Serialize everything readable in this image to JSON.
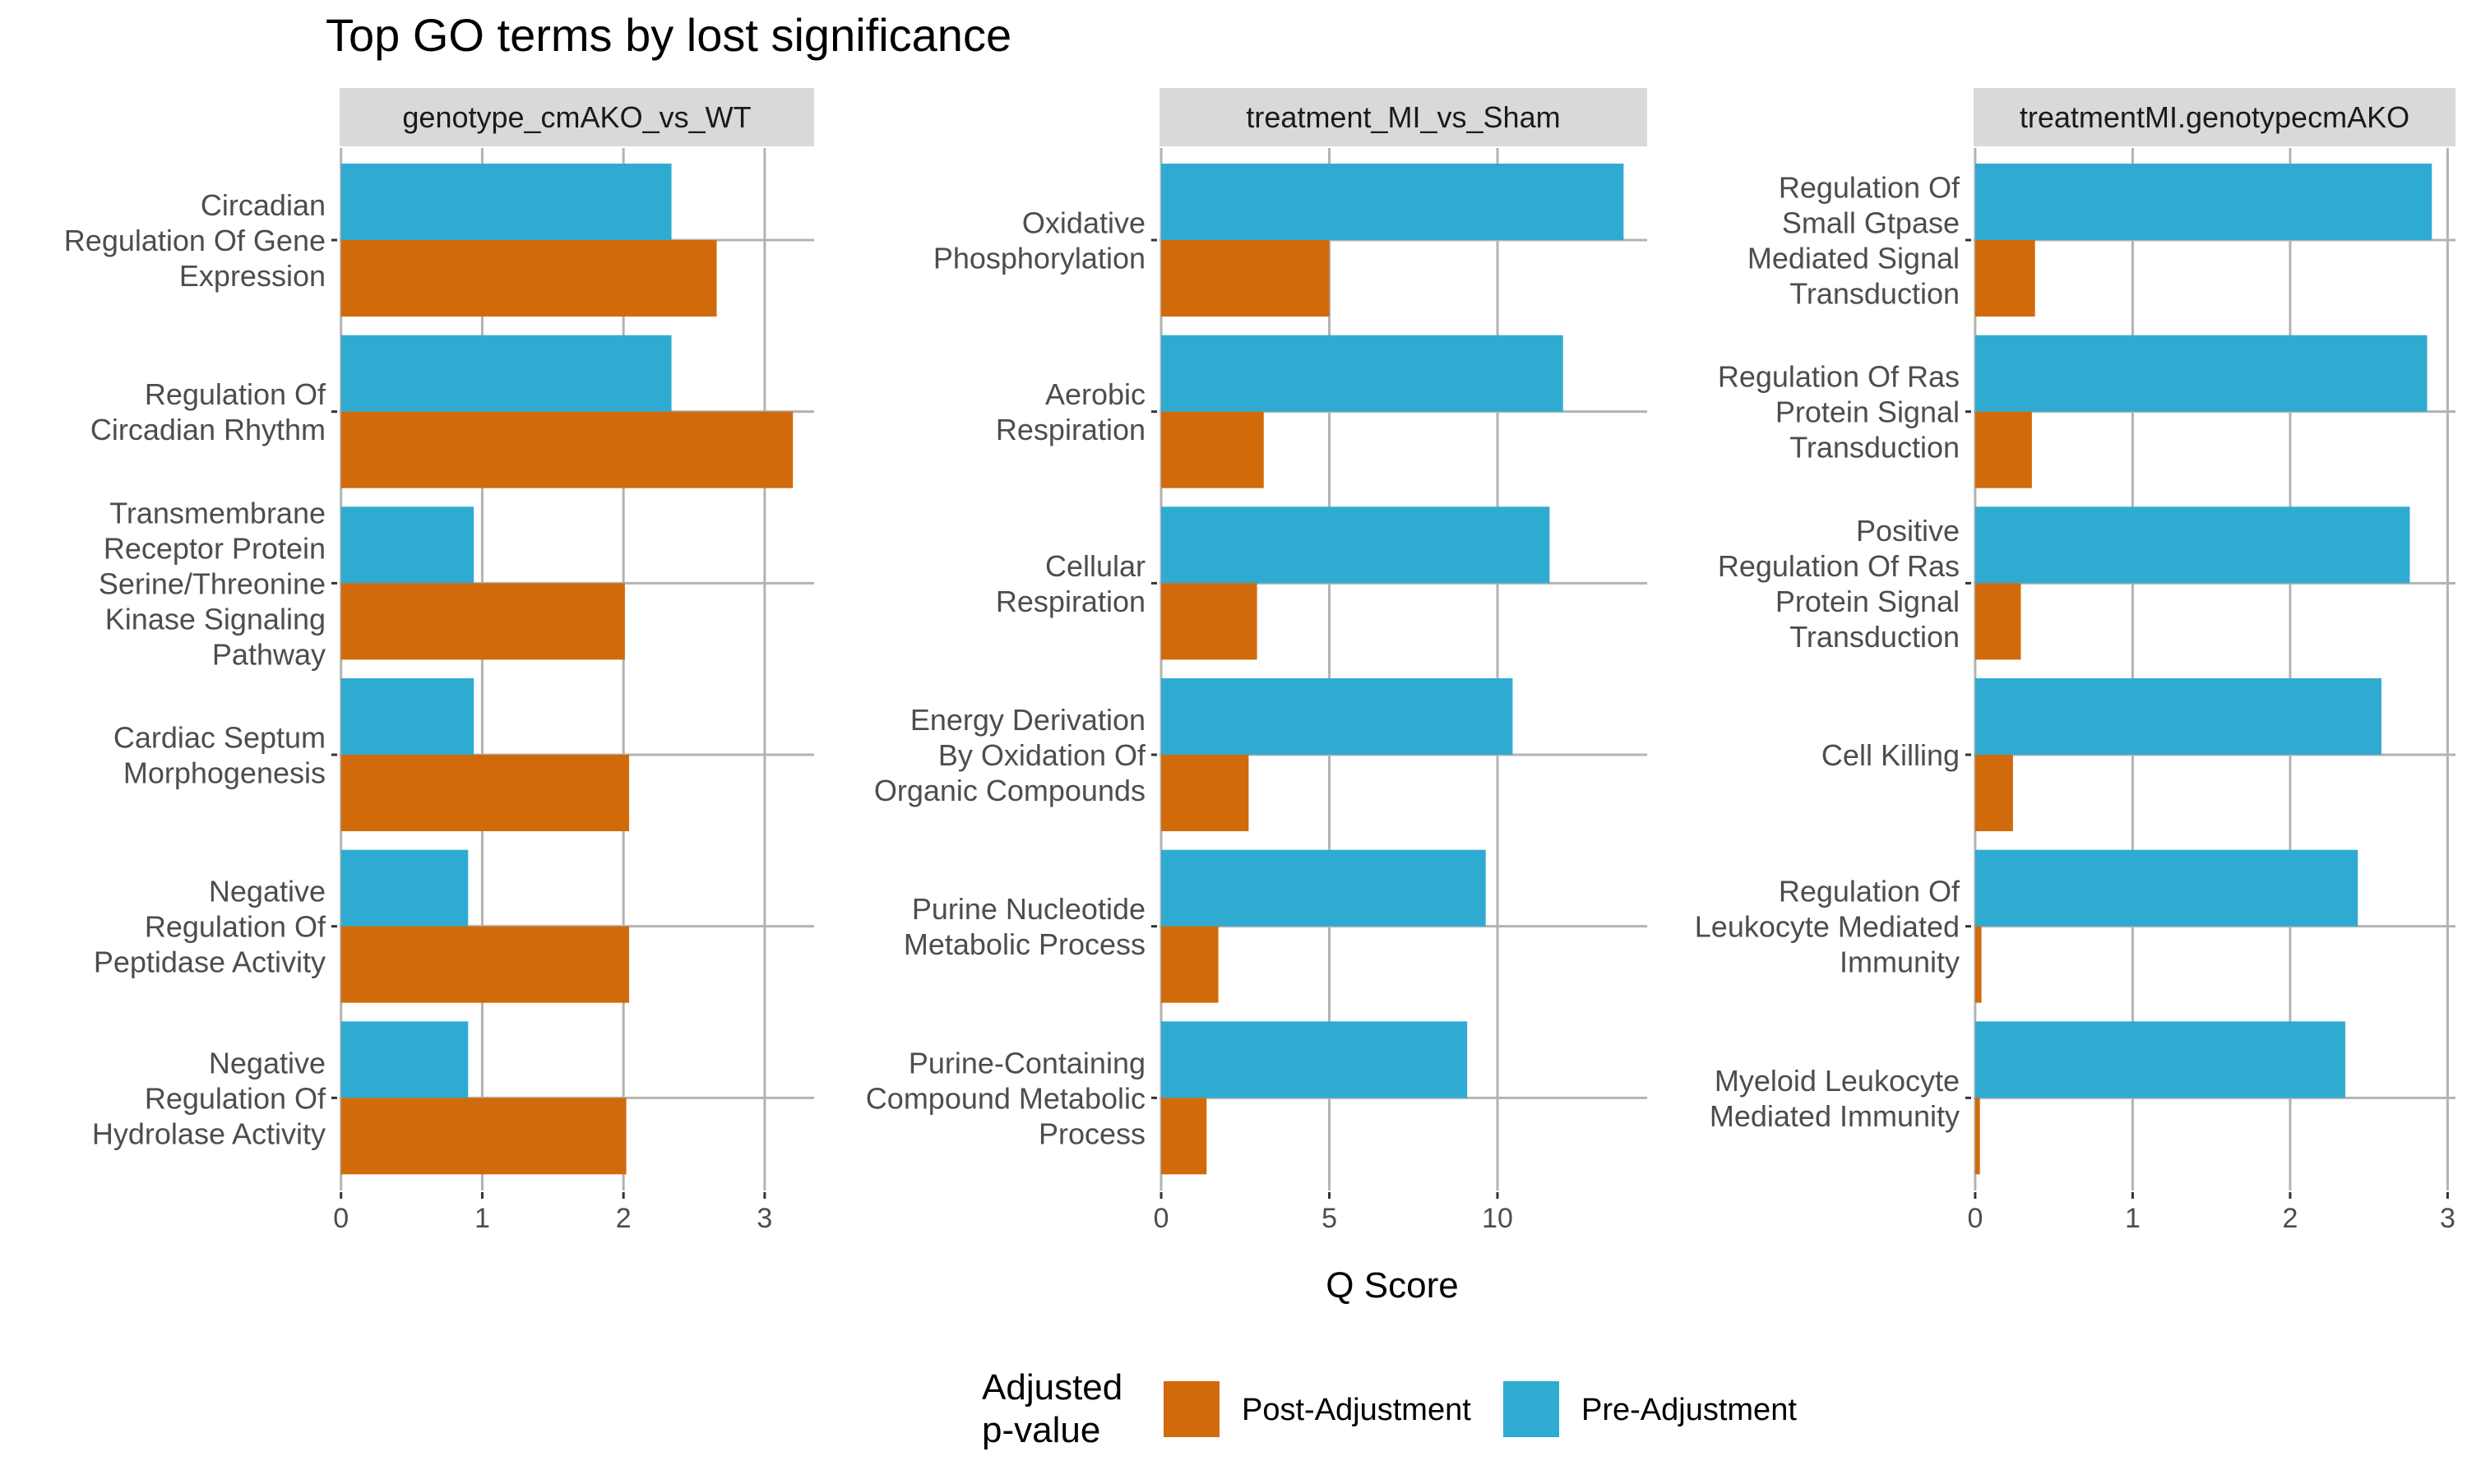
{
  "chart_data": {
    "type": "bar",
    "orientation": "horizontal",
    "title": "Top GO terms by lost significance",
    "xlabel": "Q Score",
    "ylabel": "",
    "grid": true,
    "legend": {
      "title_lines": [
        "Adjusted",
        "p-value"
      ],
      "placement": "bottom",
      "entries": [
        {
          "label": "Post-Adjustment",
          "color": "#D16A0A"
        },
        {
          "label": "Pre-Adjustment",
          "color": "#2FABD1"
        }
      ]
    },
    "colors": {
      "post": "#D16A0A",
      "pre": "#2FABD1",
      "strip": "#D9D9D9",
      "grid": "#B3B3B3"
    },
    "panels": [
      {
        "strip": "genotype_cmAKO_vs_WT",
        "xlim": [
          -0.01,
          3.35
        ],
        "xticks": [
          0,
          1,
          2,
          3
        ],
        "categories": [
          {
            "lines": [
              "Circadian",
              "Regulation Of Gene",
              "Expression"
            ],
            "pre": 2.34,
            "post": 2.66
          },
          {
            "lines": [
              "Regulation Of",
              "Circadian Rhythm"
            ],
            "pre": 2.34,
            "post": 3.2
          },
          {
            "lines": [
              "Transmembrane",
              "Receptor Protein",
              "Serine/Threonine",
              "Kinase Signaling",
              "Pathway"
            ],
            "pre": 0.94,
            "post": 2.01
          },
          {
            "lines": [
              "Cardiac Septum",
              "Morphogenesis"
            ],
            "pre": 0.94,
            "post": 2.04
          },
          {
            "lines": [
              "Negative",
              "Regulation Of",
              "Peptidase Activity"
            ],
            "pre": 0.9,
            "post": 2.04
          },
          {
            "lines": [
              "Negative",
              "Regulation Of",
              "Hydrolase Activity"
            ],
            "pre": 0.9,
            "post": 2.02
          }
        ]
      },
      {
        "strip": "treatment_MI_vs_Sham",
        "xlim": [
          -0.05,
          14.45
        ],
        "xticks": [
          0,
          5,
          10
        ],
        "categories": [
          {
            "lines": [
              "Oxidative",
              "Phosphorylation"
            ],
            "pre": 13.75,
            "post": 5.0
          },
          {
            "lines": [
              "Aerobic",
              "Respiration"
            ],
            "pre": 11.95,
            "post": 3.05
          },
          {
            "lines": [
              "Cellular",
              "Respiration"
            ],
            "pre": 11.55,
            "post": 2.85
          },
          {
            "lines": [
              "Energy Derivation",
              "By Oxidation Of",
              "Organic Compounds"
            ],
            "pre": 10.45,
            "post": 2.6
          },
          {
            "lines": [
              "Purine Nucleotide",
              "Metabolic Process"
            ],
            "pre": 9.65,
            "post": 1.7
          },
          {
            "lines": [
              "Purine-Containing",
              "Compound Metabolic",
              "Process"
            ],
            "pre": 9.1,
            "post": 1.35
          }
        ]
      },
      {
        "strip": "treatmentMI.genotypecmAKO",
        "xlim": [
          -0.01,
          3.05
        ],
        "xticks": [
          0,
          1,
          2,
          3
        ],
        "categories": [
          {
            "lines": [
              "Regulation Of",
              "Small Gtpase",
              "Mediated Signal",
              "Transduction"
            ],
            "pre": 2.9,
            "post": 0.38
          },
          {
            "lines": [
              "Regulation Of Ras",
              "Protein Signal",
              "Transduction"
            ],
            "pre": 2.87,
            "post": 0.36
          },
          {
            "lines": [
              "Positive",
              "Regulation Of Ras",
              "Protein Signal",
              "Transduction"
            ],
            "pre": 2.76,
            "post": 0.29
          },
          {
            "lines": [
              "Cell Killing"
            ],
            "pre": 2.58,
            "post": 0.24
          },
          {
            "lines": [
              "Regulation Of",
              "Leukocyte Mediated",
              "Immunity"
            ],
            "pre": 2.43,
            "post": 0.04
          },
          {
            "lines": [
              "Myeloid Leukocyte",
              "Mediated Immunity"
            ],
            "pre": 2.35,
            "post": 0.03
          }
        ]
      }
    ]
  }
}
